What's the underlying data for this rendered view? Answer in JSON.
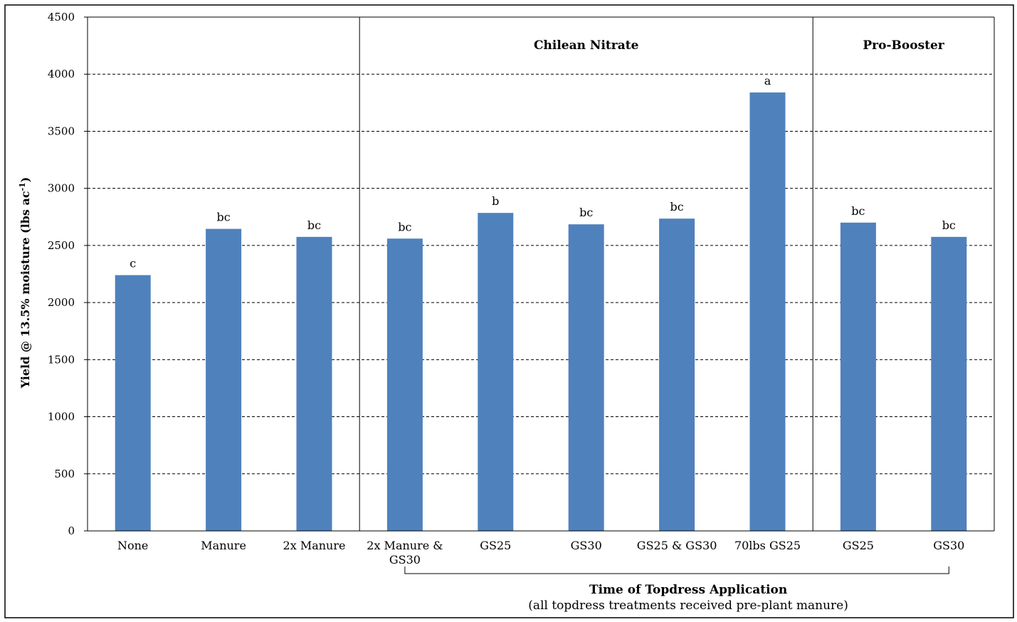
{
  "chart_data": {
    "type": "bar",
    "ylabel": "Yield @ 13.5% moisture (lbs ac",
    "ylabel_sup": "-1",
    "ylabel_close": ")",
    "ylim": [
      0,
      4500
    ],
    "yticks": [
      0,
      500,
      1000,
      1500,
      2000,
      2500,
      3000,
      3500,
      4000,
      4500
    ],
    "grid": "dashed horizontal",
    "bar_color": "#4f81bd",
    "categories": [
      [
        "None"
      ],
      [
        "Manure"
      ],
      [
        "2x Manure"
      ],
      [
        "2x Manure &",
        "GS30"
      ],
      [
        "GS25"
      ],
      [
        "GS30"
      ],
      [
        "GS25 & GS30"
      ],
      [
        "70lbs GS25"
      ],
      [
        "GS25"
      ],
      [
        "GS30"
      ]
    ],
    "values": [
      2240,
      2645,
      2575,
      2560,
      2785,
      2685,
      2735,
      3840,
      2700,
      2575
    ],
    "significance_labels": [
      "c",
      "bc",
      "bc",
      "bc",
      "b",
      "bc",
      "bc",
      "a",
      "bc",
      "bc"
    ],
    "groups": [
      {
        "title": "Chilean Nitrate",
        "start_index": 3,
        "end_index": 7
      },
      {
        "title": "Pro-Booster",
        "start_index": 8,
        "end_index": 9
      }
    ],
    "bracket_annotation": {
      "title": "Time of Topdress Application",
      "subtitle": "(all topdress treatments received pre-plant manure)",
      "start_index": 3,
      "end_index": 9
    }
  }
}
